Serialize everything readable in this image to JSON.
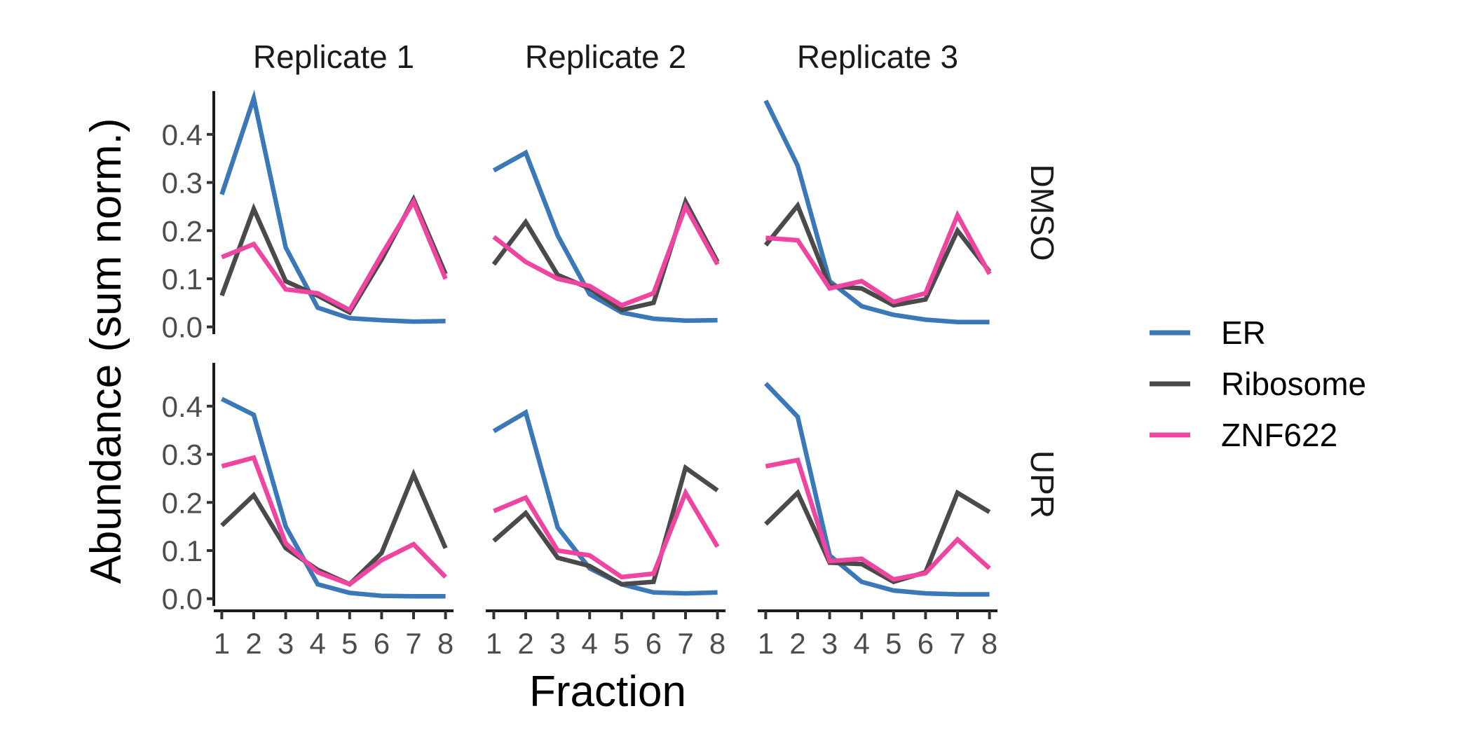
{
  "chart_data": {
    "type": "line",
    "xlabel": "Fraction",
    "ylabel": "Abundance (sum norm.)",
    "x": [
      1,
      2,
      3,
      4,
      5,
      6,
      7,
      8
    ],
    "x_tick_labels": [
      "1",
      "2",
      "3",
      "4",
      "5",
      "6",
      "7",
      "8"
    ],
    "y_ticks": [
      0.0,
      0.1,
      0.2,
      0.3,
      0.4
    ],
    "y_tick_labels": [
      "0.0",
      "0.1",
      "0.2",
      "0.3",
      "0.4"
    ],
    "xlim": [
      0.75,
      8.25
    ],
    "ylim": [
      -0.015,
      0.49
    ],
    "grid": false,
    "legend_position": "right",
    "legend": [
      {
        "name": "ER",
        "color": "#3a78b7"
      },
      {
        "name": "Ribosome",
        "color": "#4a4a4a"
      },
      {
        "name": "ZNF622",
        "color": "#ef45a0"
      }
    ],
    "columns": [
      "Replicate 1",
      "Replicate 2",
      "Replicate 3"
    ],
    "rows": [
      "DMSO",
      "UPR"
    ],
    "panels": [
      {
        "column": "Replicate 1",
        "row": "DMSO",
        "series": [
          {
            "name": "ER",
            "values": [
              0.275,
              0.475,
              0.165,
              0.04,
              0.018,
              0.014,
              0.011,
              0.012
            ]
          },
          {
            "name": "Ribosome",
            "values": [
              0.065,
              0.245,
              0.095,
              0.065,
              0.03,
              0.14,
              0.265,
              0.11
            ]
          },
          {
            "name": "ZNF622",
            "values": [
              0.145,
              0.172,
              0.078,
              0.07,
              0.035,
              0.15,
              0.26,
              0.1
            ]
          }
        ]
      },
      {
        "column": "Replicate 2",
        "row": "DMSO",
        "series": [
          {
            "name": "ER",
            "values": [
              0.325,
              0.362,
              0.19,
              0.068,
              0.03,
              0.017,
              0.013,
              0.014
            ]
          },
          {
            "name": "Ribosome",
            "values": [
              0.13,
              0.218,
              0.108,
              0.08,
              0.035,
              0.05,
              0.26,
              0.135
            ]
          },
          {
            "name": "ZNF622",
            "values": [
              0.187,
              0.135,
              0.1,
              0.085,
              0.045,
              0.07,
              0.25,
              0.13
            ]
          }
        ]
      },
      {
        "column": "Replicate 3",
        "row": "DMSO",
        "series": [
          {
            "name": "ER",
            "values": [
              0.47,
              0.335,
              0.095,
              0.043,
              0.025,
              0.015,
              0.01,
              0.01
            ]
          },
          {
            "name": "Ribosome",
            "values": [
              0.17,
              0.252,
              0.085,
              0.08,
              0.045,
              0.057,
              0.2,
              0.115
            ]
          },
          {
            "name": "ZNF622",
            "values": [
              0.185,
              0.18,
              0.08,
              0.095,
              0.052,
              0.07,
              0.232,
              0.11
            ]
          }
        ]
      },
      {
        "column": "Replicate 1",
        "row": "UPR",
        "series": [
          {
            "name": "ER",
            "values": [
              0.415,
              0.382,
              0.15,
              0.03,
              0.012,
              0.006,
              0.005,
              0.005
            ]
          },
          {
            "name": "Ribosome",
            "values": [
              0.152,
              0.215,
              0.105,
              0.06,
              0.03,
              0.095,
              0.258,
              0.105
            ]
          },
          {
            "name": "ZNF622",
            "values": [
              0.275,
              0.293,
              0.115,
              0.055,
              0.03,
              0.08,
              0.113,
              0.045
            ]
          }
        ]
      },
      {
        "column": "Replicate 2",
        "row": "UPR",
        "series": [
          {
            "name": "ER",
            "values": [
              0.348,
              0.387,
              0.148,
              0.063,
              0.03,
              0.013,
              0.011,
              0.013
            ]
          },
          {
            "name": "Ribosome",
            "values": [
              0.12,
              0.178,
              0.085,
              0.068,
              0.03,
              0.035,
              0.272,
              0.225
            ]
          },
          {
            "name": "ZNF622",
            "values": [
              0.182,
              0.21,
              0.1,
              0.09,
              0.045,
              0.052,
              0.22,
              0.108
            ]
          }
        ]
      },
      {
        "column": "Replicate 3",
        "row": "UPR",
        "series": [
          {
            "name": "ER",
            "values": [
              0.447,
              0.378,
              0.09,
              0.035,
              0.017,
              0.011,
              0.009,
              0.009
            ]
          },
          {
            "name": "Ribosome",
            "values": [
              0.155,
              0.22,
              0.075,
              0.072,
              0.035,
              0.055,
              0.22,
              0.18
            ]
          },
          {
            "name": "ZNF622",
            "values": [
              0.275,
              0.288,
              0.078,
              0.083,
              0.04,
              0.053,
              0.123,
              0.063
            ]
          }
        ]
      }
    ]
  }
}
